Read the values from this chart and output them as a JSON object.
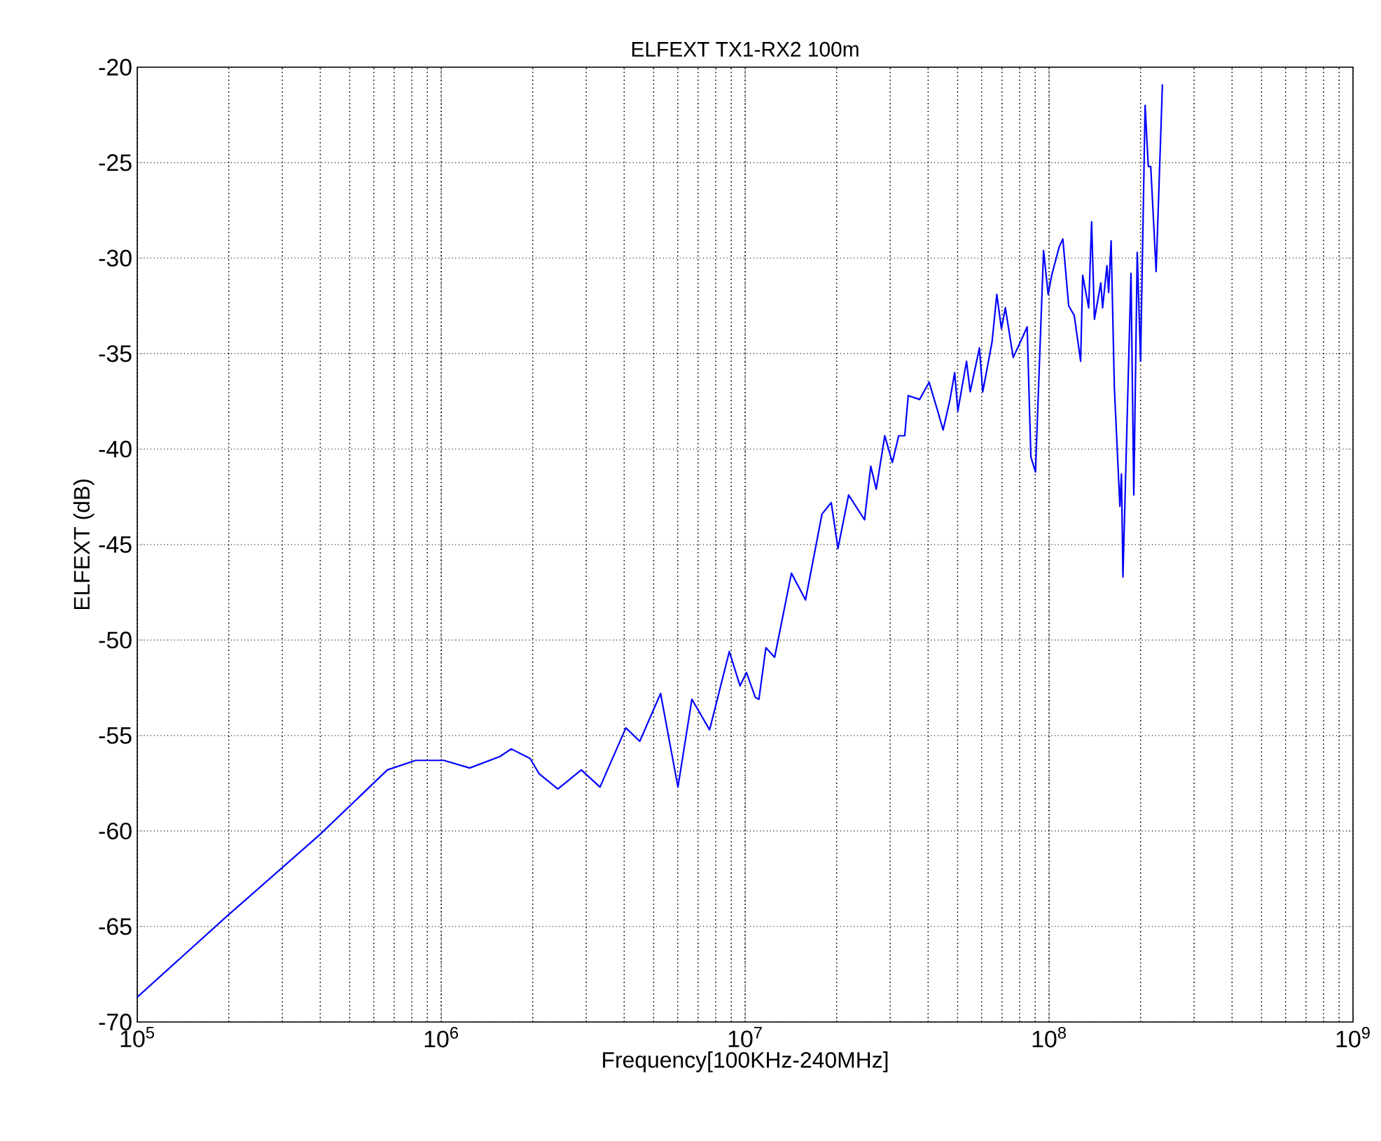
{
  "chart_data": {
    "type": "line",
    "title": "ELFEXT TX1-RX2 100m",
    "xlabel": "Frequency[100KHz-240MHz]",
    "ylabel": "ELFEXT (dB)",
    "log": "x",
    "grid": true,
    "marker": "none",
    "line_style": "solid",
    "xlim": [
      100000,
      1000000000
    ],
    "xticks": [
      {
        "value": 100000,
        "label": "10$^{5}$"
      },
      {
        "value": 1000000,
        "label": "10$^{6}$"
      },
      {
        "value": 10000000,
        "label": "10$^{7}$"
      },
      {
        "value": 100000000,
        "label": "10$^{8}$"
      },
      {
        "value": 1000000000,
        "label": "10$^{9}$"
      }
    ],
    "ylim": [
      -70,
      -20
    ],
    "yticks": [
      -70,
      -65,
      -60,
      -55,
      -50,
      -45,
      -40,
      -35,
      -30,
      -25,
      -20
    ],
    "series": [
      {
        "color": "#0000ff",
        "x": [
          100000.0,
          196000.0,
          398000.0,
          665000.0,
          824000.0,
          1020000.0,
          1240000.0,
          1560000.0,
          1700000.0,
          1960000.0,
          2100000.0,
          2420000.0,
          2890000.0,
          3330000.0,
          4050000.0,
          4500000.0,
          5270000.0,
          6010000.0,
          6680000.0,
          7640000.0,
          8870000.0,
          9620000.0,
          10100000.0,
          10800000.0,
          11100000.0,
          11700000.0,
          12500000.0,
          14200000.0,
          15800000.0,
          17900000.0,
          19200000.0,
          20200000.0,
          21900000.0,
          24700000.0,
          25900000.0,
          27000000.0,
          28800000.0,
          30500000.0,
          32000000.0,
          33500000.0,
          34400000.0,
          37500000.0,
          40300000.0,
          43000000.0,
          44800000.0,
          47200000.0,
          48900000.0,
          50100000.0,
          53500000.0,
          55000000.0,
          59000000.0,
          60500000.0,
          64900000.0,
          67300000.0,
          69700000.0,
          71800000.0,
          76200000.0,
          80400000.0,
          84700000.0,
          87100000.0,
          90200000.0,
          95900000.0,
          99300000.0,
          102000000.0,
          108000000.0,
          111000000.0,
          116000000.0,
          121000000.0,
          127000000.0,
          129000000.0,
          135000000.0,
          138000000.0,
          141000000.0,
          148000000.0,
          150000000.0,
          155000000.0,
          157000000.0,
          160000000.0,
          164000000.0,
          171000000.0,
          173000000.0,
          175000000.0,
          186000000.0,
          190000000.0,
          195000000.0,
          200000000.0,
          207000000.0,
          212000000.0,
          216000000.0,
          225000000.0,
          236000000.0
        ],
        "values": [
          -68.7,
          -64.5,
          -60.2,
          -56.8,
          -56.3,
          -56.3,
          -56.7,
          -56.1,
          -55.7,
          -56.2,
          -57.0,
          -57.8,
          -56.8,
          -57.7,
          -54.6,
          -55.3,
          -52.8,
          -57.7,
          -53.1,
          -54.7,
          -50.6,
          -52.4,
          -51.7,
          -53.0,
          -53.1,
          -50.4,
          -50.9,
          -46.5,
          -47.9,
          -43.4,
          -42.8,
          -45.2,
          -42.4,
          -43.7,
          -40.9,
          -42.1,
          -39.3,
          -40.7,
          -39.3,
          -39.3,
          -37.2,
          -37.4,
          -36.5,
          -38.0,
          -39.0,
          -37.4,
          -36.0,
          -38.0,
          -35.4,
          -37.0,
          -34.7,
          -37.0,
          -34.4,
          -31.9,
          -33.7,
          -32.6,
          -35.2,
          -34.4,
          -33.6,
          -40.4,
          -41.2,
          -29.6,
          -31.9,
          -30.9,
          -29.4,
          -29.0,
          -32.5,
          -33.0,
          -35.4,
          -30.9,
          -32.6,
          -28.1,
          -33.2,
          -31.3,
          -32.6,
          -30.4,
          -31.8,
          -29.1,
          -36.8,
          -43.0,
          -41.3,
          -46.7,
          -30.8,
          -42.4,
          -29.7,
          -35.4,
          -22.0,
          -25.2,
          -25.2,
          -30.7,
          -20.9
        ]
      }
    ]
  }
}
